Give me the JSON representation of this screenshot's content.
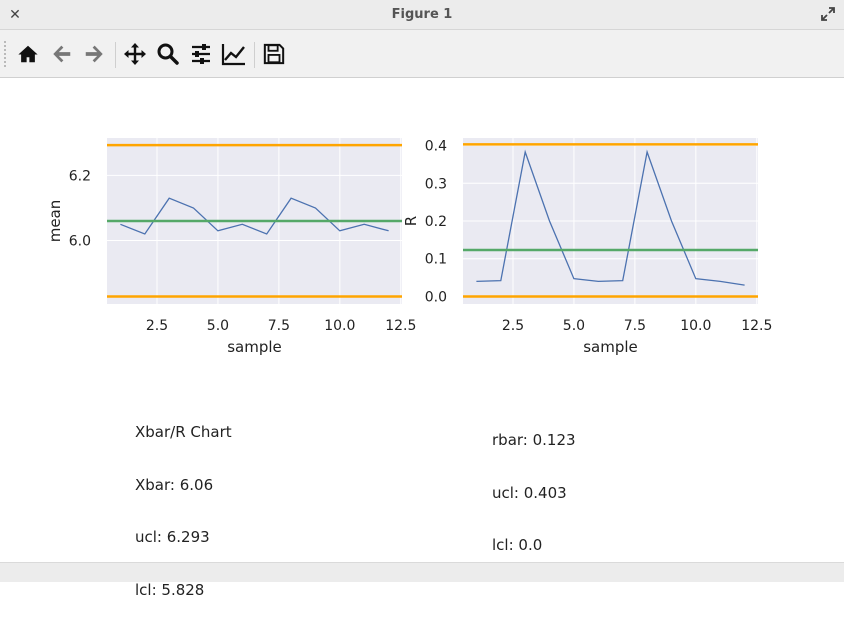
{
  "window": {
    "title": "Figure 1"
  },
  "toolbar": {
    "buttons": [
      {
        "name": "home-button",
        "icon": "home-icon"
      },
      {
        "name": "back-button",
        "icon": "arrow-left-icon"
      },
      {
        "name": "forward-button",
        "icon": "arrow-right-icon"
      },
      {
        "name": "pan-button",
        "icon": "move-icon"
      },
      {
        "name": "zoom-button",
        "icon": "magnifier-icon"
      },
      {
        "name": "subplots-button",
        "icon": "sliders-icon"
      },
      {
        "name": "axes-edit-button",
        "icon": "line-chart-icon"
      },
      {
        "name": "save-button",
        "icon": "floppy-icon"
      }
    ]
  },
  "colors": {
    "background": "#eaeaf2",
    "limits": "#ffa500",
    "center": "#55a868",
    "series": "#4c72b0"
  },
  "chart_data": [
    {
      "type": "line",
      "xlabel": "sample",
      "ylabel": "mean",
      "xlim": [
        0.45,
        12.55
      ],
      "ylim": [
        5.805,
        6.315
      ],
      "xticks": [
        "2.5",
        "5.0",
        "7.5",
        "10.0",
        "12.5"
      ],
      "yticks": [
        "6.0",
        "6.2"
      ],
      "grid": true,
      "x": [
        1,
        2,
        3,
        4,
        5,
        6,
        7,
        8,
        9,
        10,
        11,
        12
      ],
      "series": [
        {
          "values": [
            6.05,
            6.02,
            6.13,
            6.1,
            6.03,
            6.05,
            6.02,
            6.13,
            6.1,
            6.03,
            6.05,
            6.03
          ]
        }
      ],
      "hlines": {
        "ucl": 6.293,
        "center": 6.06,
        "lcl": 5.828
      }
    },
    {
      "type": "line",
      "xlabel": "sample",
      "ylabel": "R",
      "xlim": [
        0.45,
        12.55
      ],
      "ylim": [
        -0.02,
        0.42
      ],
      "xticks": [
        "2.5",
        "5.0",
        "7.5",
        "10.0",
        "12.5"
      ],
      "yticks": [
        "0.0",
        "0.1",
        "0.2",
        "0.3",
        "0.4"
      ],
      "grid": true,
      "x": [
        1,
        2,
        3,
        4,
        5,
        6,
        7,
        8,
        9,
        10,
        11,
        12
      ],
      "series": [
        {
          "values": [
            0.04,
            0.042,
            0.383,
            0.2,
            0.047,
            0.04,
            0.042,
            0.383,
            0.2,
            0.047,
            0.04,
            0.03
          ]
        }
      ],
      "hlines": {
        "ucl": 0.403,
        "center": 0.123,
        "lcl": 0.0
      }
    }
  ],
  "text_left": {
    "line1": "Xbar/R Chart",
    "line2": "Xbar: 6.06",
    "line3": "ucl: 6.293",
    "line4": "lcl: 5.828"
  },
  "text_right": {
    "line1": "rbar: 0.123",
    "line2": "ucl: 0.403",
    "line3": "lcl: 0.0"
  }
}
